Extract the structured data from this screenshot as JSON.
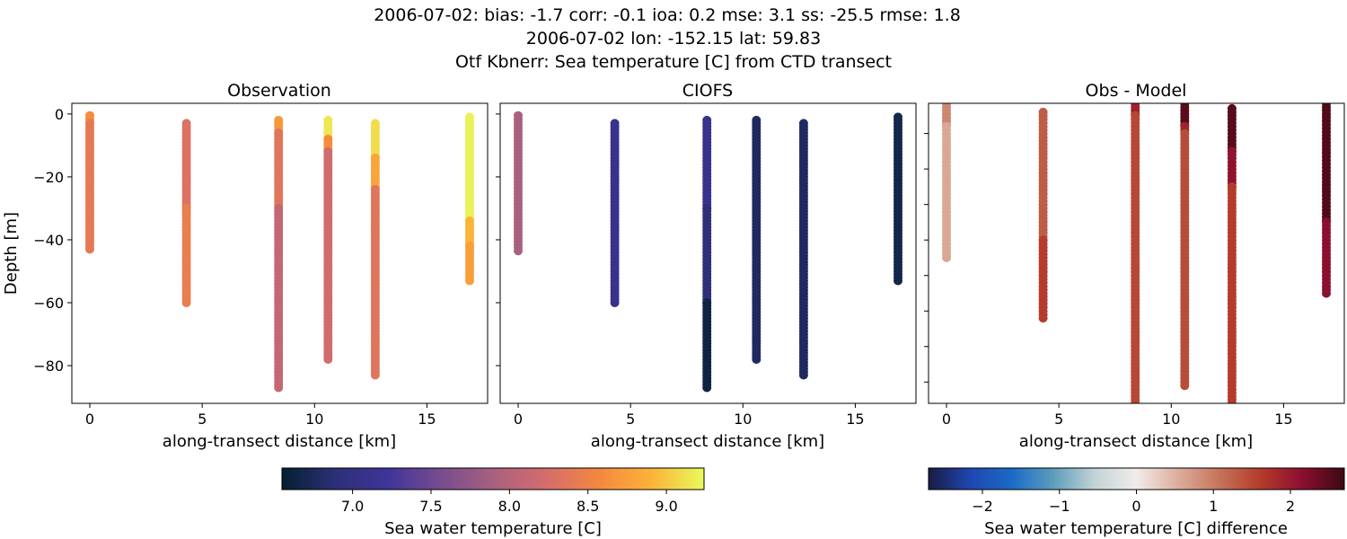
{
  "title_lines": [
    "2006-07-02: bias: -1.7  corr: -0.1  ioa: 0.2  mse: 3.1  ss: -25.5  rmse: 1.8",
    "2006-07-02 lon: -152.15 lat: 59.83",
    "Otf Kbnerr: Sea temperature [C] from CTD transect"
  ],
  "chart_data": [
    {
      "type": "scatter",
      "title": "Observation",
      "xlabel": "along-transect distance [km]",
      "ylabel": "Depth [m]",
      "xlim": [
        -0.8,
        17.7
      ],
      "ylim": [
        -92,
        3.4
      ],
      "xticks": [
        0,
        5,
        10,
        15
      ],
      "yticks": [
        0,
        -20,
        -40,
        -60,
        -80
      ],
      "colormap": "thermal",
      "clim": [
        6.55,
        9.24
      ],
      "profiles": [
        {
          "x": 0.0,
          "segments": [
            {
              "top": -0.5,
              "bottom": -3,
              "value": 8.6
            },
            {
              "top": -3,
              "bottom": -43.5,
              "value": 8.4
            }
          ]
        },
        {
          "x": 4.3,
          "segments": [
            {
              "top": -3,
              "bottom": -30,
              "value": 8.3
            },
            {
              "top": -30,
              "bottom": -60,
              "value": 8.45
            }
          ]
        },
        {
          "x": 8.4,
          "segments": [
            {
              "top": -2,
              "bottom": -6,
              "value": 8.7
            },
            {
              "top": -6,
              "bottom": -30,
              "value": 8.35
            },
            {
              "top": -30,
              "bottom": -87,
              "value": 8.1
            }
          ]
        },
        {
          "x": 10.6,
          "segments": [
            {
              "top": -2,
              "bottom": -8,
              "value": 9.15
            },
            {
              "top": -8,
              "bottom": -12,
              "value": 8.6
            },
            {
              "top": -12,
              "bottom": -78,
              "value": 8.2
            }
          ]
        },
        {
          "x": 12.7,
          "segments": [
            {
              "top": -3,
              "bottom": -14,
              "value": 9.1
            },
            {
              "top": -14,
              "bottom": -24,
              "value": 8.8
            },
            {
              "top": -24,
              "bottom": -83,
              "value": 8.35
            }
          ]
        },
        {
          "x": 16.9,
          "segments": [
            {
              "top": -1,
              "bottom": -34,
              "value": 9.2
            },
            {
              "top": -34,
              "bottom": -42,
              "value": 8.9
            },
            {
              "top": -42,
              "bottom": -53.5,
              "value": 8.75
            }
          ]
        }
      ]
    },
    {
      "type": "scatter",
      "title": "CIOFS",
      "xlabel": "along-transect distance [km]",
      "xlim": [
        -0.8,
        17.7
      ],
      "ylim": [
        -92,
        3.4
      ],
      "xticks": [
        0,
        5,
        10,
        15
      ],
      "yticks": [
        0,
        -20,
        -40,
        -60,
        -80
      ],
      "colormap": "thermal",
      "clim": [
        6.55,
        9.24
      ],
      "profiles": [
        {
          "x": 0.0,
          "segments": [
            {
              "top": -0.5,
              "bottom": -43.5,
              "value": 7.9
            }
          ]
        },
        {
          "x": 4.3,
          "segments": [
            {
              "top": -3,
              "bottom": -60,
              "value": 7.1
            }
          ]
        },
        {
          "x": 8.4,
          "segments": [
            {
              "top": -2,
              "bottom": -30,
              "value": 7.1
            },
            {
              "top": -30,
              "bottom": -60,
              "value": 6.9
            },
            {
              "top": -60,
              "bottom": -87,
              "value": 6.65
            }
          ]
        },
        {
          "x": 10.6,
          "segments": [
            {
              "top": -2,
              "bottom": -78,
              "value": 6.78
            }
          ]
        },
        {
          "x": 12.7,
          "segments": [
            {
              "top": -3,
              "bottom": -83,
              "value": 6.78
            }
          ]
        },
        {
          "x": 16.9,
          "segments": [
            {
              "top": -1,
              "bottom": -53.5,
              "value": 6.68
            }
          ]
        }
      ]
    },
    {
      "type": "scatter",
      "title": "Obs - Model",
      "xlabel": "along-transect distance [km]",
      "xlim": [
        -0.8,
        17.7
      ],
      "ylim": [
        -86,
        -1.5
      ],
      "xticks": [
        0,
        5,
        10,
        15
      ],
      "yticks": [
        -10,
        -20,
        -30,
        -40,
        -50,
        -60,
        -70,
        -80
      ],
      "colormap": "balance",
      "clim": [
        -2.7,
        2.7
      ],
      "profiles": [
        {
          "x": 0.0,
          "segments": [
            {
              "top": -1.5,
              "bottom": -8,
              "value": 0.9
            },
            {
              "top": -8,
              "bottom": -45,
              "value": 0.6
            }
          ]
        },
        {
          "x": 4.3,
          "segments": [
            {
              "top": -4,
              "bottom": -40,
              "value": 1.3
            },
            {
              "top": -40,
              "bottom": -62,
              "value": 1.6
            }
          ]
        },
        {
          "x": 8.4,
          "segments": [
            {
              "top": -1.5,
              "bottom": -5,
              "value": 1.9
            },
            {
              "top": -5,
              "bottom": -90,
              "value": 1.5
            }
          ]
        },
        {
          "x": 10.6,
          "segments": [
            {
              "top": -1.5,
              "bottom": -8,
              "value": 2.5
            },
            {
              "top": -8,
              "bottom": -10,
              "value": 1.9
            },
            {
              "top": -10,
              "bottom": -81,
              "value": 1.45
            }
          ]
        },
        {
          "x": 12.7,
          "segments": [
            {
              "top": -3,
              "bottom": -15,
              "value": 2.5
            },
            {
              "top": -15,
              "bottom": -25,
              "value": 2.1
            },
            {
              "top": -25,
              "bottom": -87,
              "value": 1.6
            }
          ]
        },
        {
          "x": 16.9,
          "segments": [
            {
              "top": -1.5,
              "bottom": -35,
              "value": 2.55
            },
            {
              "top": -35,
              "bottom": -55,
              "value": 2.15
            }
          ]
        }
      ]
    }
  ],
  "colorbars": [
    {
      "label": "Sea water temperature [C]",
      "range": [
        6.55,
        9.24
      ],
      "ticks": [
        7.0,
        7.5,
        8.0,
        8.5,
        9.0
      ],
      "tick_labels": [
        "7.0",
        "7.5",
        "8.0",
        "8.5",
        "9.0"
      ],
      "colormap": "thermal"
    },
    {
      "label": "Sea water temperature [C] difference",
      "range": [
        -2.7,
        2.7
      ],
      "ticks": [
        -2,
        -1,
        0,
        1,
        2
      ],
      "tick_labels": [
        "−2",
        "−1",
        "0",
        "1",
        "2"
      ],
      "colormap": "balance"
    }
  ],
  "colormaps": {
    "thermal": [
      "#03202f",
      "#2d2f78",
      "#3f3499",
      "#774c8f",
      "#a8607f",
      "#d46d6c",
      "#f4873f",
      "#fbb339",
      "#e8fa5b"
    ],
    "balance": [
      "#181c43",
      "#1f46b0",
      "#1a6ac6",
      "#5d9dbb",
      "#c3d3d6",
      "#f1ecea",
      "#dcad9b",
      "#c5735a",
      "#b43a2a",
      "#8a0e2f",
      "#3c0911"
    ]
  }
}
